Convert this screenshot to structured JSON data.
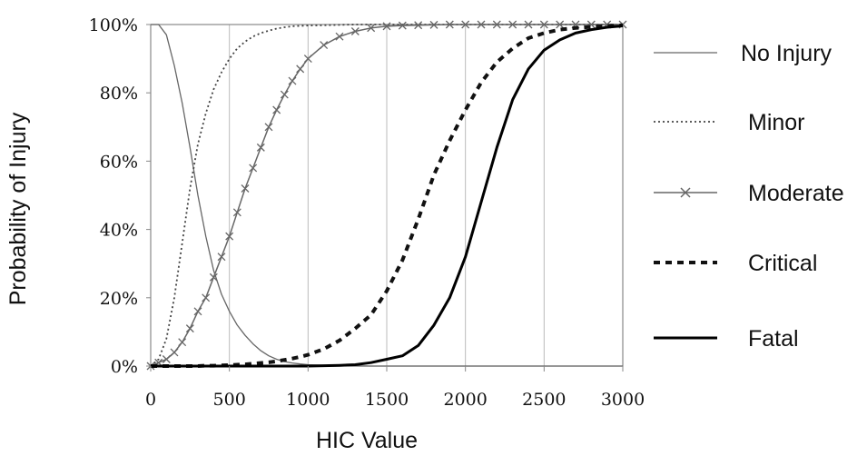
{
  "chart_data": {
    "type": "line",
    "xlabel": "HIC Value",
    "ylabel": "Probability of Injury",
    "xlim": [
      0,
      3000
    ],
    "ylim": [
      0,
      100
    ],
    "x_ticks": [
      "0",
      "500",
      "1000",
      "1500",
      "2000",
      "2500",
      "3000"
    ],
    "y_ticks": [
      "0%",
      "20%",
      "40%",
      "60%",
      "80%",
      "100%"
    ],
    "grid": "vertical",
    "legend_position": "right",
    "x": [
      0,
      50,
      100,
      150,
      200,
      250,
      300,
      350,
      400,
      450,
      500,
      550,
      600,
      650,
      700,
      750,
      800,
      850,
      900,
      950,
      1000,
      1100,
      1200,
      1300,
      1400,
      1500,
      1600,
      1700,
      1800,
      1900,
      2000,
      2100,
      2200,
      2300,
      2400,
      2500,
      2600,
      2700,
      2800,
      2900,
      3000
    ],
    "series": [
      {
        "name": "No Injury",
        "style": "thin-solid",
        "color": "#666666",
        "values": [
          100,
          100,
          97,
          88,
          77,
          64,
          50,
          38,
          28,
          21,
          16,
          12,
          9,
          6.5,
          4.5,
          3,
          2,
          1.3,
          0.9,
          0.6,
          0.4,
          0.2,
          0.1,
          0.05,
          0,
          0,
          0,
          0,
          0,
          0,
          0,
          0,
          0,
          0,
          0,
          0,
          0,
          0,
          0,
          0,
          0
        ]
      },
      {
        "name": "Minor",
        "style": "dotted",
        "color": "#444444",
        "values": [
          0,
          2,
          8,
          20,
          36,
          52,
          65,
          74,
          81,
          86,
          90,
          93,
          95,
          96.5,
          97.5,
          98.2,
          98.8,
          99.2,
          99.5,
          99.6,
          99.7,
          99.8,
          99.9,
          100,
          100,
          100,
          100,
          100,
          100,
          100,
          100,
          100,
          100,
          100,
          100,
          100,
          100,
          100,
          100,
          100,
          100
        ]
      },
      {
        "name": "Moderate",
        "style": "solid-x-markers",
        "color": "#666666",
        "values": [
          0,
          1,
          2,
          4,
          7,
          11,
          16,
          20,
          26,
          32,
          38,
          45,
          52,
          58,
          64,
          70,
          75,
          79.5,
          83.5,
          87,
          90,
          94,
          96.5,
          98,
          99,
          99.5,
          99.7,
          99.8,
          99.9,
          100,
          100,
          100,
          100,
          100,
          100,
          100,
          100,
          100,
          100,
          100,
          100
        ]
      },
      {
        "name": "Critical",
        "style": "thick-dashed",
        "color": "#111111",
        "values": [
          0,
          0,
          0,
          0,
          0,
          0,
          0,
          0.1,
          0.1,
          0.2,
          0.3,
          0.4,
          0.5,
          0.7,
          0.9,
          1.1,
          1.4,
          1.8,
          2.2,
          2.7,
          3.3,
          5,
          7.5,
          11,
          15,
          22,
          31,
          43,
          56,
          66,
          75,
          83,
          89,
          93,
          96,
          97.5,
          98.5,
          99,
          99.3,
          99.6,
          99.8
        ]
      },
      {
        "name": "Fatal",
        "style": "thick-solid",
        "color": "#000000",
        "values": [
          0,
          0,
          0,
          0,
          0,
          0,
          0,
          0,
          0,
          0,
          0,
          0,
          0,
          0,
          0,
          0,
          0,
          0,
          0,
          0,
          0,
          0.1,
          0.2,
          0.4,
          1,
          2,
          3,
          6,
          12,
          20,
          32,
          48,
          64,
          78,
          87,
          92.5,
          95.5,
          97.5,
          98.5,
          99.2,
          99.6
        ]
      }
    ]
  }
}
